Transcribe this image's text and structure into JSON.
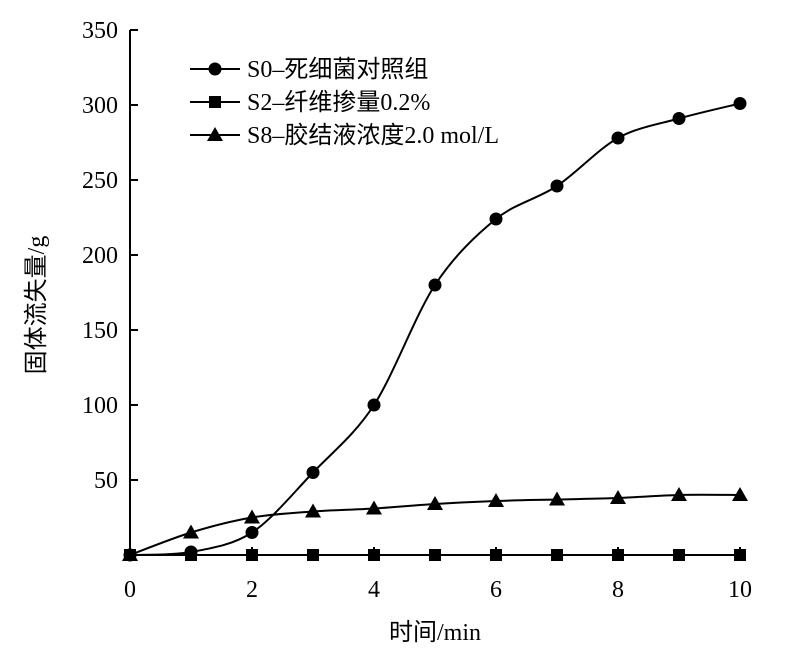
{
  "chart_data": {
    "type": "line",
    "title": "",
    "xlabel": "时间/min",
    "ylabel": "固体流失量/g",
    "xlim": [
      0,
      10
    ],
    "ylim": [
      0,
      350
    ],
    "xticks": [
      "0",
      "2",
      "4",
      "6",
      "8",
      "10"
    ],
    "yticks": [
      "50",
      "100",
      "150",
      "200",
      "250",
      "300",
      "350"
    ],
    "grid": false,
    "legend_position": "top-left",
    "series": [
      {
        "name": "S0–死细菌对照组",
        "marker": "circle",
        "x": [
          0,
          1,
          2,
          3,
          4,
          5,
          6,
          7,
          8,
          9,
          10
        ],
        "values": [
          0,
          2,
          15,
          55,
          100,
          180,
          224,
          246,
          278,
          291,
          301
        ]
      },
      {
        "name": "S2–纤维掺量0.2%",
        "marker": "square",
        "x": [
          0,
          1,
          2,
          3,
          4,
          5,
          6,
          7,
          8,
          9,
          10
        ],
        "values": [
          0,
          0,
          0,
          0,
          0,
          0,
          0,
          0,
          0,
          0,
          0
        ]
      },
      {
        "name": "S8–胶结液浓度2.0 mol/L",
        "marker": "triangle",
        "x": [
          0,
          1,
          2,
          3,
          4,
          5,
          6,
          7,
          8,
          9,
          10
        ],
        "values": [
          0,
          15,
          25,
          29,
          31,
          34,
          36,
          37,
          38,
          40,
          40
        ]
      }
    ]
  }
}
